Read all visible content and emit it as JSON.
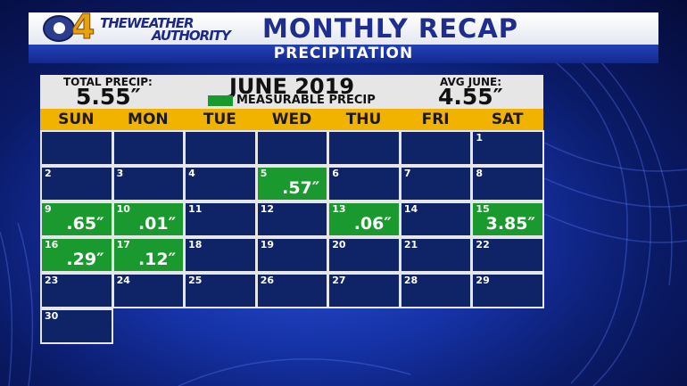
{
  "header": {
    "network_logo": "CBS",
    "channel_number": "4",
    "brand_line1": "THEWEATHER",
    "brand_line2": "AUTHORITY",
    "title": "MONTHLY RECAP",
    "subtitle": "PRECIPITATION"
  },
  "summary": {
    "total_label": "TOTAL PRECIP:",
    "total_value": "5.55″",
    "month": "JUNE 2019",
    "legend_label": "MEASURABLE PRECIP",
    "legend_color": "#1a9a2e",
    "avg_label": "AVG JUNE:",
    "avg_value": "4.55″"
  },
  "days_of_week": [
    "SUN",
    "MON",
    "TUE",
    "WED",
    "THU",
    "FRI",
    "SAT"
  ],
  "calendar": [
    {
      "row": 0,
      "col": 0,
      "day": "",
      "amount": ""
    },
    {
      "row": 0,
      "col": 1,
      "day": "",
      "amount": ""
    },
    {
      "row": 0,
      "col": 2,
      "day": "",
      "amount": ""
    },
    {
      "row": 0,
      "col": 3,
      "day": "",
      "amount": ""
    },
    {
      "row": 0,
      "col": 4,
      "day": "",
      "amount": ""
    },
    {
      "row": 0,
      "col": 5,
      "day": "",
      "amount": ""
    },
    {
      "row": 0,
      "col": 6,
      "day": "1",
      "amount": ""
    },
    {
      "row": 1,
      "col": 0,
      "day": "2",
      "amount": ""
    },
    {
      "row": 1,
      "col": 1,
      "day": "3",
      "amount": ""
    },
    {
      "row": 1,
      "col": 2,
      "day": "4",
      "amount": ""
    },
    {
      "row": 1,
      "col": 3,
      "day": "5",
      "amount": ".57″"
    },
    {
      "row": 1,
      "col": 4,
      "day": "6",
      "amount": ""
    },
    {
      "row": 1,
      "col": 5,
      "day": "7",
      "amount": ""
    },
    {
      "row": 1,
      "col": 6,
      "day": "8",
      "amount": ""
    },
    {
      "row": 2,
      "col": 0,
      "day": "9",
      "amount": ".65″"
    },
    {
      "row": 2,
      "col": 1,
      "day": "10",
      "amount": ".01″"
    },
    {
      "row": 2,
      "col": 2,
      "day": "11",
      "amount": ""
    },
    {
      "row": 2,
      "col": 3,
      "day": "12",
      "amount": ""
    },
    {
      "row": 2,
      "col": 4,
      "day": "13",
      "amount": ".06″"
    },
    {
      "row": 2,
      "col": 5,
      "day": "14",
      "amount": ""
    },
    {
      "row": 2,
      "col": 6,
      "day": "15",
      "amount": "3.85″"
    },
    {
      "row": 3,
      "col": 0,
      "day": "16",
      "amount": ".29″"
    },
    {
      "row": 3,
      "col": 1,
      "day": "17",
      "amount": ".12″"
    },
    {
      "row": 3,
      "col": 2,
      "day": "18",
      "amount": ""
    },
    {
      "row": 3,
      "col": 3,
      "day": "19",
      "amount": ""
    },
    {
      "row": 3,
      "col": 4,
      "day": "20",
      "amount": ""
    },
    {
      "row": 3,
      "col": 5,
      "day": "21",
      "amount": ""
    },
    {
      "row": 3,
      "col": 6,
      "day": "22",
      "amount": ""
    },
    {
      "row": 4,
      "col": 0,
      "day": "23",
      "amount": ""
    },
    {
      "row": 4,
      "col": 1,
      "day": "24",
      "amount": ""
    },
    {
      "row": 4,
      "col": 2,
      "day": "25",
      "amount": ""
    },
    {
      "row": 4,
      "col": 3,
      "day": "26",
      "amount": ""
    },
    {
      "row": 4,
      "col": 4,
      "day": "27",
      "amount": ""
    },
    {
      "row": 4,
      "col": 5,
      "day": "28",
      "amount": ""
    },
    {
      "row": 4,
      "col": 6,
      "day": "29",
      "amount": ""
    },
    {
      "row": 5,
      "col": 0,
      "day": "30",
      "amount": ""
    }
  ]
}
